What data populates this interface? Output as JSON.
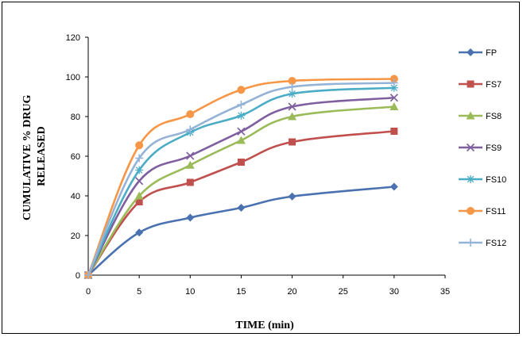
{
  "chart_data": {
    "type": "line",
    "title": "",
    "xlabel": "TIME (min)",
    "ylabel": "CUMULATIVE % DRUG RELEASED",
    "ylabel_lines": [
      "CUMULATIVE % DRUG",
      "RELEASED"
    ],
    "xlim": [
      0,
      35
    ],
    "ylim": [
      0,
      120
    ],
    "xticks": [
      0,
      5,
      10,
      15,
      20,
      25,
      30,
      35
    ],
    "yticks": [
      0,
      20,
      40,
      60,
      80,
      100,
      120
    ],
    "grid": false,
    "legend_position": "right",
    "x": [
      0,
      5,
      10,
      15,
      20,
      30
    ],
    "series": [
      {
        "name": "FP",
        "color": "#4a72b0",
        "marker": "diamond",
        "values": [
          0,
          21.5,
          29.0,
          34.0,
          39.7,
          44.6
        ]
      },
      {
        "name": "FS7",
        "color": "#c0504d",
        "marker": "square",
        "values": [
          0,
          37.0,
          46.8,
          57.0,
          67.2,
          72.6
        ]
      },
      {
        "name": "FS8",
        "color": "#9bbb59",
        "marker": "triangle",
        "values": [
          0,
          40.0,
          55.5,
          68.0,
          80.0,
          85.0
        ]
      },
      {
        "name": "FS9",
        "color": "#7f5f9f",
        "marker": "x",
        "values": [
          0,
          47.5,
          60.2,
          72.5,
          85.0,
          89.5
        ]
      },
      {
        "name": "FS10",
        "color": "#4bacc6",
        "marker": "star",
        "values": [
          0,
          53.0,
          72.0,
          80.5,
          91.5,
          94.5
        ]
      },
      {
        "name": "FS11",
        "color": "#f79646",
        "marker": "circle",
        "values": [
          0,
          65.5,
          81.2,
          93.5,
          98.0,
          99.0
        ]
      },
      {
        "name": "FS12",
        "color": "#95b3d7",
        "marker": "plus",
        "values": [
          0,
          59.0,
          73.5,
          86.0,
          95.0,
          97.0
        ]
      }
    ]
  }
}
